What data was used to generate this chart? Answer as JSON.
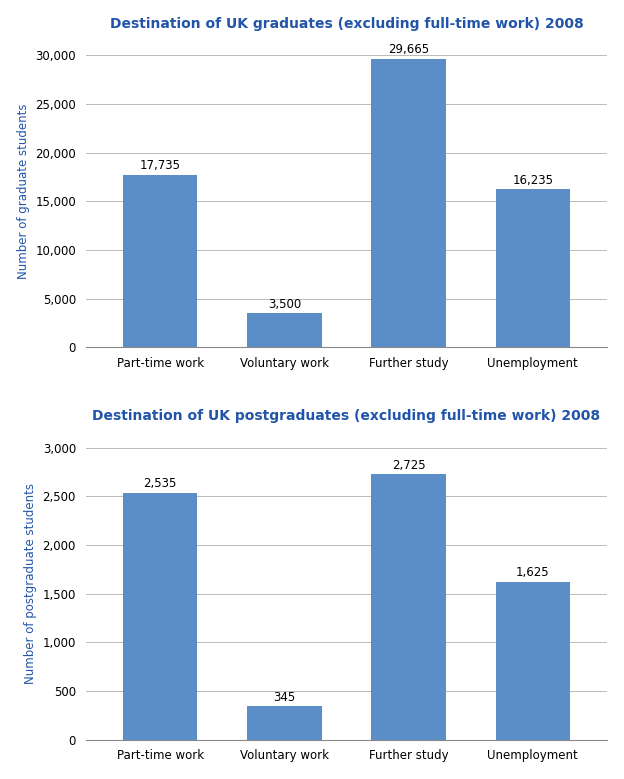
{
  "grad_title": "Destination of UK graduates (excluding full-time work) 2008",
  "postgrad_title": "Destination of UK postgraduates (excluding full-time work) 2008",
  "categories": [
    "Part-time work",
    "Voluntary work",
    "Further study",
    "Unemployment"
  ],
  "grad_values": [
    17735,
    3500,
    29665,
    16235
  ],
  "grad_labels": [
    "17,735",
    "3,500",
    "29,665",
    "16,235"
  ],
  "postgrad_values": [
    2535,
    345,
    2725,
    1625
  ],
  "postgrad_labels": [
    "2,535",
    "345",
    "2,725",
    "1,625"
  ],
  "bar_color": "#5b8ec7",
  "title_color": "#2255aa",
  "ylabel_color": "#2255aa",
  "ylabel_grad": "Number of graduate students",
  "ylabel_postgrad": "Number of postgraduate students",
  "grad_ylim": [
    0,
    32000
  ],
  "grad_yticks": [
    0,
    5000,
    10000,
    15000,
    20000,
    25000,
    30000
  ],
  "postgrad_ylim": [
    0,
    3200
  ],
  "postgrad_yticks": [
    0,
    500,
    1000,
    1500,
    2000,
    2500,
    3000
  ],
  "title_fontsize": 10,
  "label_fontsize": 8.5,
  "tick_fontsize": 8.5,
  "ylabel_fontsize": 8.5,
  "bar_width": 0.6,
  "background_color": "#ffffff",
  "grid_color": "#bbbbbb",
  "spine_color": "#888888"
}
